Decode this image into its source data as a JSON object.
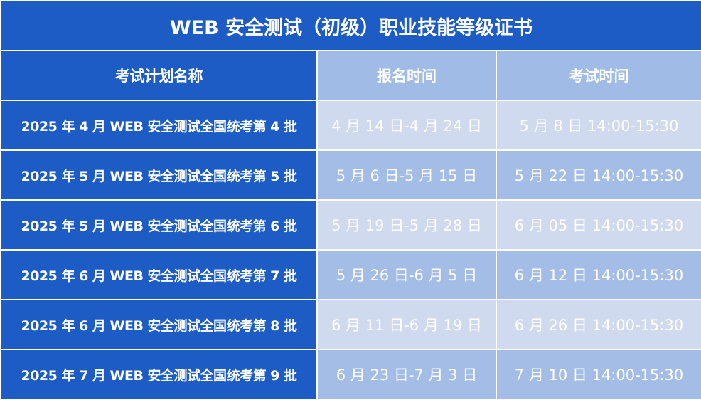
{
  "title": "WEB 安全测试（初级）职业技能等级证书",
  "headers": [
    "考试计划名称",
    "报名时间",
    "考试时间"
  ],
  "rows": [
    [
      "2025 年 4 月 WEB 安全测试全国统考第 4 批",
      "4 月 14 日-4 月 24 日",
      "5 月 8 日  14:00-15:30"
    ],
    [
      "2025 年 5 月 WEB 安全测试全国统考第 5 批",
      "5 月 6 日-5 月 15 日",
      "5 月 22 日  14:00-15:30"
    ],
    [
      "2025 年 5 月 WEB 安全测试全国统考第 6 批",
      "5 月 19 日-5 月 28 日",
      "6 月 05 日  14:00-15:30"
    ],
    [
      "2025 年 6 月 WEB 安全测试全国统考第 7 批",
      "5 月 26 日-6 月 5 日",
      "6 月 12 日  14:00-15:30"
    ],
    [
      "2025 年 6 月 WEB 安全测试全国统考第 8 批",
      "6 月 11 日-6 月 19 日",
      "6 月 26 日  14:00-15:30"
    ],
    [
      "2025 年 7 月 WEB 安全测试全国统考第 9 批",
      "6 月 23 日-7 月 3 日",
      "7 月 10 日  14:00-15:30"
    ]
  ],
  "colors": {
    "primary": "#1c5cc4",
    "header_light": "#a0bbe6",
    "row_light": "#cfdaef",
    "row_mid": "#a3bde6"
  }
}
